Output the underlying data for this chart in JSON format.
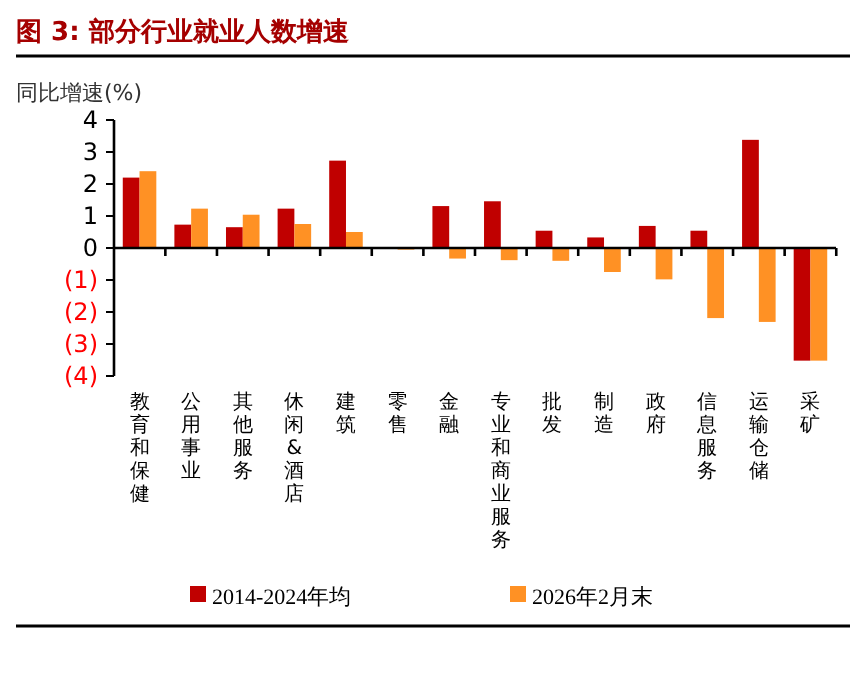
{
  "chart_data": {
    "type": "bar",
    "title": "图 3: 部分行业就业人数增速",
    "ylabel": "同比增速(%)",
    "categories": [
      "教育和保健",
      "公用事业",
      "其他服务",
      "休闲&酒店",
      "建筑",
      "零售",
      "金融",
      "专业和商业服务",
      "批发",
      "制造",
      "政府",
      "信息服务",
      "运输仓储",
      "采矿"
    ],
    "series": [
      {
        "name": "2014-2024年均",
        "color": "#c00000",
        "values": [
          2.2,
          0.73,
          0.65,
          1.23,
          2.73,
          0,
          1.31,
          1.46,
          0.54,
          0.33,
          0.69,
          0.54,
          3.38,
          -3.52
        ]
      },
      {
        "name": "2026年2月末",
        "color": "#ff9124",
        "values": [
          2.4,
          1.23,
          1.04,
          0.75,
          0.5,
          -0.05,
          -0.33,
          -0.38,
          -0.4,
          -0.75,
          -0.98,
          -2.19,
          -2.31,
          -3.52
        ]
      }
    ],
    "ylim": [
      -4,
      4
    ],
    "yticks": [
      4,
      3,
      2,
      1,
      0,
      {
        "value": -1,
        "label": "(1)"
      },
      {
        "value": -2,
        "label": "(2)"
      },
      {
        "value": -3,
        "label": "(3)"
      },
      {
        "value": -4,
        "label": "(4)"
      }
    ],
    "legend": "bottom"
  }
}
